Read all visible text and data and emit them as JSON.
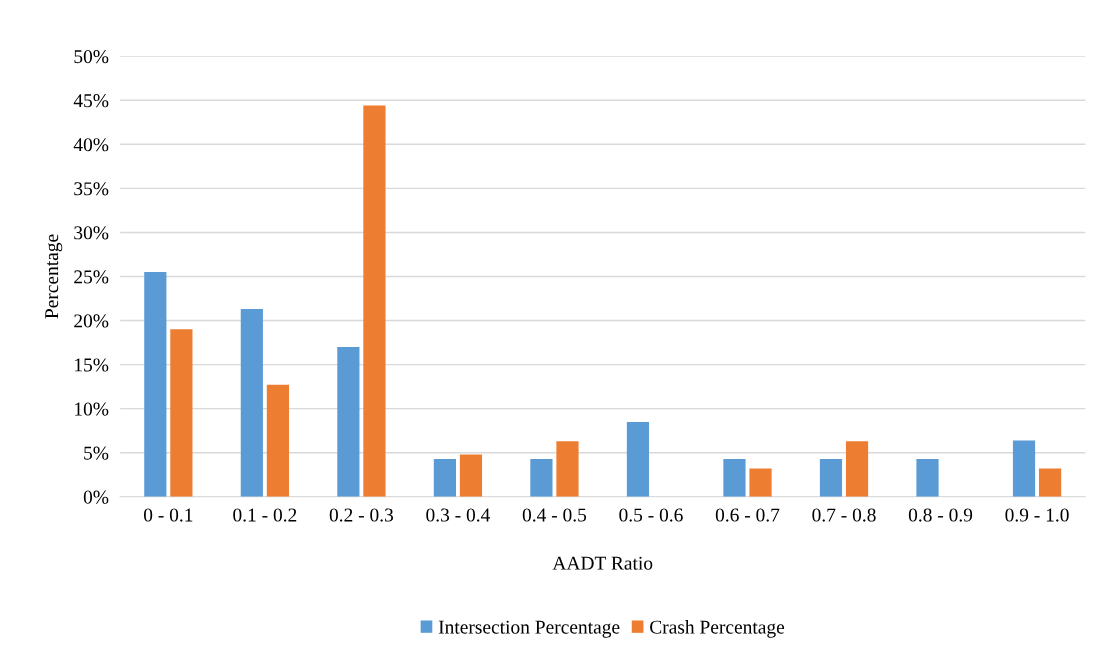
{
  "chart_data": {
    "type": "bar",
    "xlabel": "AADT Ratio",
    "ylabel": "Percentage",
    "categories": [
      "0 - 0.1",
      "0.1 - 0.2",
      "0.2 - 0.3",
      "0.3 - 0.4",
      "0.4 - 0.5",
      "0.5 - 0.6",
      "0.6 - 0.7",
      "0.7 - 0.8",
      "0.8 - 0.9",
      "0.9 - 1.0"
    ],
    "series": [
      {
        "name": "Intersection Percentage",
        "color": "#5b9bd5",
        "values": [
          25.5,
          21.3,
          17.0,
          4.3,
          4.3,
          8.5,
          4.3,
          4.3,
          4.3,
          6.4
        ]
      },
      {
        "name": "Crash Percentage",
        "color": "#ed7d31",
        "values": [
          19.0,
          12.7,
          44.4,
          4.8,
          6.3,
          0,
          3.2,
          6.3,
          0,
          3.2
        ]
      }
    ],
    "ylim": [
      0,
      50
    ],
    "yticks": [
      {
        "value": 0,
        "label": "0%"
      },
      {
        "value": 5,
        "label": "5%"
      },
      {
        "value": 10,
        "label": "10%"
      },
      {
        "value": 15,
        "label": "15%"
      },
      {
        "value": 20,
        "label": "20%"
      },
      {
        "value": 25,
        "label": "25%"
      },
      {
        "value": 30,
        "label": "30%"
      },
      {
        "value": 35,
        "label": "35%"
      },
      {
        "value": 40,
        "label": "40%"
      },
      {
        "value": 45,
        "label": "45%"
      },
      {
        "value": 50,
        "label": "50%"
      }
    ],
    "grid": "y",
    "legend": "bottom"
  }
}
